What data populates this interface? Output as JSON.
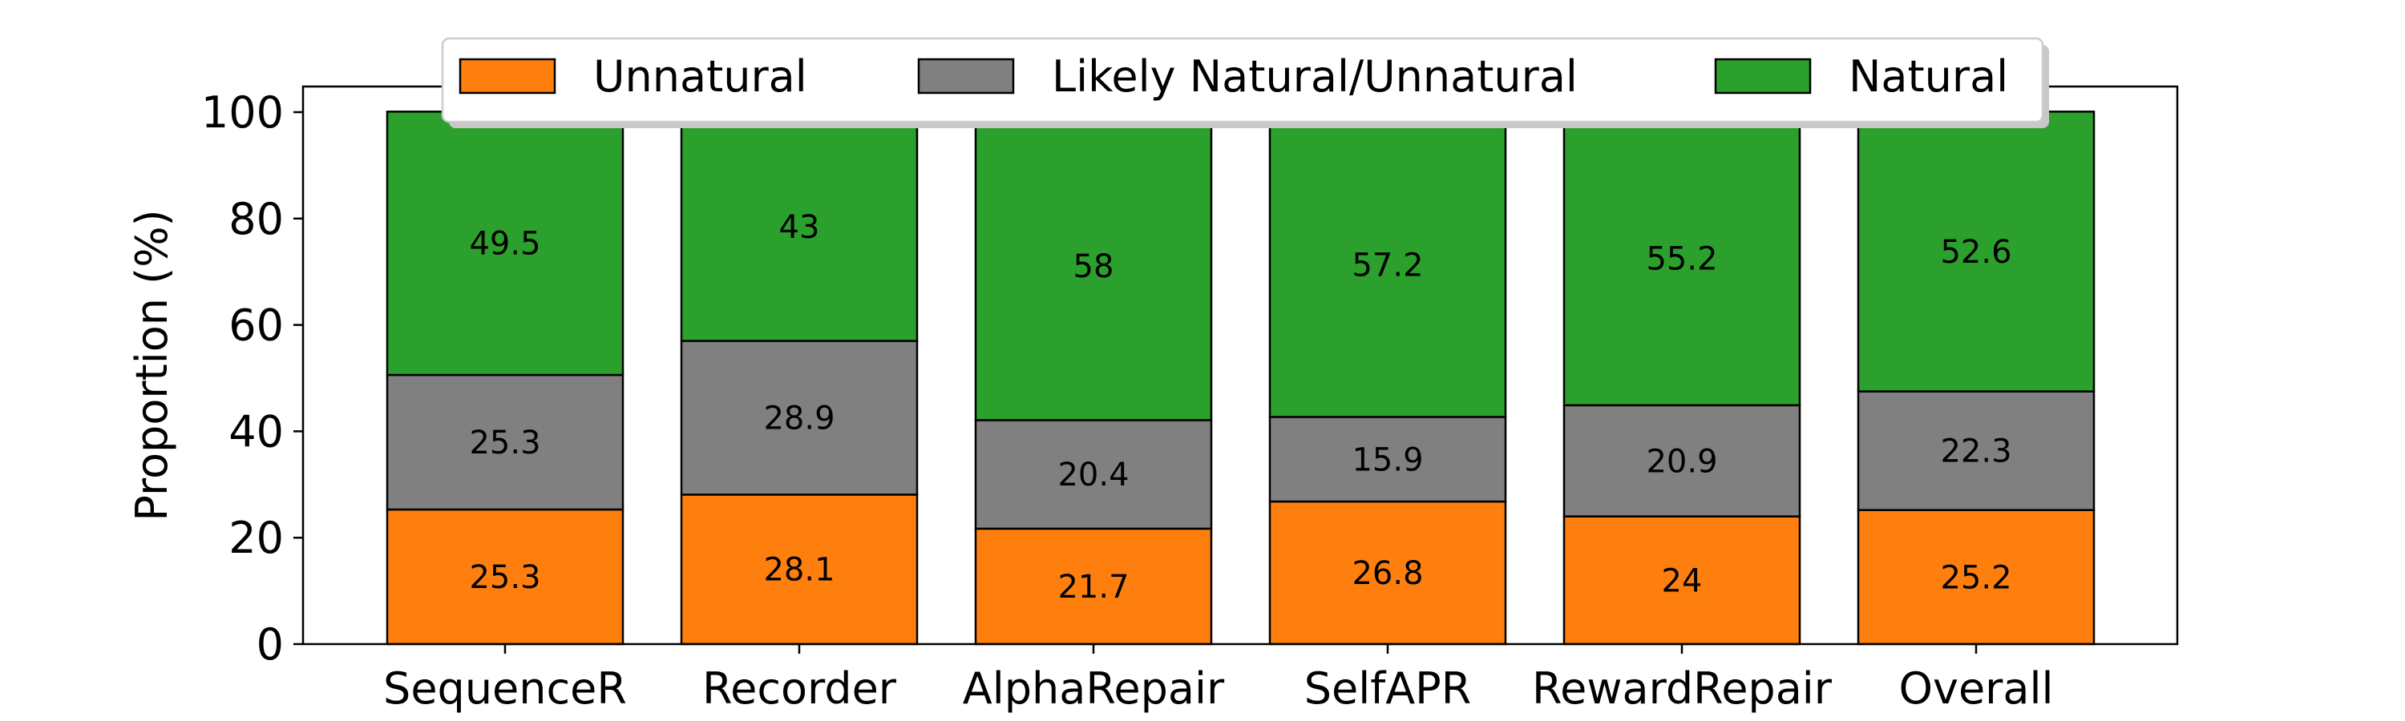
{
  "chart_data": {
    "type": "bar",
    "stacked": true,
    "categories": [
      "SequenceR",
      "Recorder",
      "AlphaRepair",
      "SelfAPR",
      "RewardRepair",
      "Overall"
    ],
    "series": [
      {
        "name": "Unnatural",
        "color": "#ff7f0e",
        "values": [
          25.3,
          28.1,
          21.7,
          26.8,
          24,
          25.2
        ],
        "labels": [
          "25.3",
          "28.1",
          "21.7",
          "26.8",
          "24",
          "25.2"
        ]
      },
      {
        "name": "Likely Natural/Unnatural",
        "color": "#808080",
        "values": [
          25.3,
          28.9,
          20.4,
          15.9,
          20.9,
          22.3
        ],
        "labels": [
          "25.3",
          "28.9",
          "20.4",
          "15.9",
          "20.9",
          "22.3"
        ]
      },
      {
        "name": "Natural",
        "color": "#2ca02c",
        "values": [
          49.5,
          43,
          58,
          57.2,
          55.2,
          52.6
        ],
        "labels": [
          "49.5",
          "43",
          "58",
          "57.2",
          "55.2",
          "52.6"
        ]
      }
    ],
    "title": "",
    "xlabel": "",
    "ylabel": "Proportion (%)",
    "ylim": [
      0,
      100
    ],
    "yticks": [
      0,
      20,
      40,
      60,
      80,
      100
    ],
    "grid": false,
    "legend_position": "top-center"
  }
}
